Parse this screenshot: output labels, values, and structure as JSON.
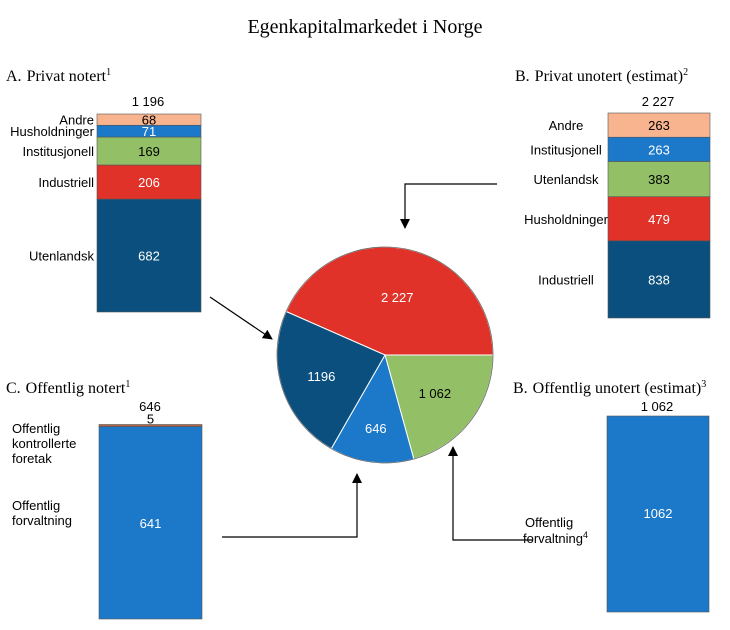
{
  "title": "Egenkapitalmarkedet i Norge",
  "colors": {
    "dark_blue": "#0a4f7e",
    "red": "#e03228",
    "green": "#93c066",
    "blue": "#1c78c8",
    "peach": "#f8b48e",
    "brown": "#b5674c",
    "arrow": "#000000"
  },
  "chart_data": [
    {
      "type": "bar",
      "id": "A",
      "title_letter": "A.",
      "title": "Privat notert",
      "title_sup": "1",
      "total_label": "1 196",
      "stack_order_bottom_to_top": [
        "Utenlandsk",
        "Industriell",
        "Institusjonell",
        "Husholdninger",
        "Andre"
      ],
      "series": [
        {
          "name": "Utenlandsk",
          "value": 682,
          "label": "682",
          "color": "#0a4f7e"
        },
        {
          "name": "Industriell",
          "value": 206,
          "label": "206",
          "color": "#e03228"
        },
        {
          "name": "Institusjonell",
          "value": 169,
          "label": "169",
          "color": "#93c066"
        },
        {
          "name": "Husholdninger",
          "value": 71,
          "label": "71",
          "color": "#1c78c8"
        },
        {
          "name": "Andre",
          "value": 68,
          "label": "68",
          "color": "#f8b48e"
        }
      ]
    },
    {
      "type": "bar",
      "id": "B1",
      "title_letter": "B.",
      "title": "Privat unotert (estimat)",
      "title_sup": "2",
      "total_label": "2 227",
      "stack_order_bottom_to_top": [
        "Industriell",
        "Husholdninger",
        "Utenlandsk",
        "Institusjonell",
        "Andre"
      ],
      "series": [
        {
          "name": "Industriell",
          "value": 838,
          "label": "838",
          "color": "#0a4f7e"
        },
        {
          "name": "Husholdninger",
          "value": 479,
          "label": "479",
          "color": "#e03228"
        },
        {
          "name": "Utenlandsk",
          "value": 383,
          "label": "383",
          "color": "#93c066"
        },
        {
          "name": "Institusjonell",
          "value": 263,
          "label": "263",
          "color": "#1c78c8"
        },
        {
          "name": "Andre",
          "value": 263,
          "label": "263",
          "color": "#f8b48e"
        }
      ]
    },
    {
      "type": "bar",
      "id": "C",
      "title_letter": "C.",
      "title": "Offentlig notert",
      "title_sup": "1",
      "total_label": "646",
      "series": [
        {
          "name": "Offentlig forvaltning",
          "value": 641,
          "label": "641",
          "color": "#1c78c8"
        },
        {
          "name": "Offentlig kontrollerte foretak",
          "value": 5,
          "label": "5",
          "color": "#b5674c"
        }
      ]
    },
    {
      "type": "bar",
      "id": "B2",
      "title_letter": "B.",
      "title": "Offentlig unotert (estimat)",
      "title_sup": "3",
      "total_label": "1 062",
      "series": [
        {
          "name": "Offentlig forvaltning",
          "name_sup": "4",
          "value": 1062,
          "label": "1062",
          "color": "#1c78c8"
        }
      ]
    },
    {
      "type": "pie",
      "id": "total",
      "slices": [
        {
          "value": 2227,
          "label": "2 227",
          "color": "#e03228"
        },
        {
          "value": 1062,
          "label": "1 062",
          "color": "#93c066"
        },
        {
          "value": 646,
          "label": "646",
          "color": "#1c78c8"
        },
        {
          "value": 1196,
          "label": "1196",
          "color": "#0a4f7e"
        }
      ]
    }
  ]
}
